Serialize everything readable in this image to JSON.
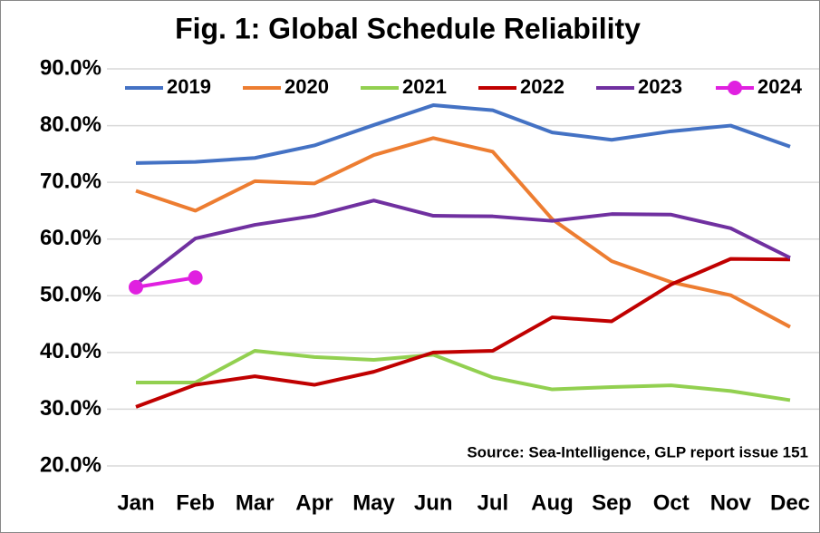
{
  "chart_data": {
    "type": "line",
    "title": "Fig. 1: Global Schedule Reliability",
    "annotation": "Source: Sea-Intelligence, GLP report issue 151",
    "categories": [
      "Jan",
      "Feb",
      "Mar",
      "Apr",
      "May",
      "Jun",
      "Jul",
      "Aug",
      "Sep",
      "Oct",
      "Nov",
      "Dec"
    ],
    "series": [
      {
        "name": "2019",
        "color": "#4472c4",
        "values": [
          73.4,
          73.6,
          74.3,
          76.5,
          80.1,
          83.6,
          82.7,
          78.8,
          77.5,
          79.0,
          80.0,
          76.3
        ]
      },
      {
        "name": "2020",
        "color": "#ed7d31",
        "values": [
          68.5,
          65.0,
          70.2,
          69.8,
          74.8,
          77.8,
          75.4,
          63.5,
          56.1,
          52.4,
          50.1,
          44.5
        ]
      },
      {
        "name": "2021",
        "color": "#92d050",
        "values": [
          34.7,
          34.7,
          40.3,
          39.2,
          38.7,
          39.6,
          35.6,
          33.5,
          33.9,
          34.2,
          33.2,
          31.6
        ]
      },
      {
        "name": "2022",
        "color": "#c00000",
        "values": [
          30.4,
          34.3,
          35.8,
          34.3,
          36.6,
          40.0,
          40.3,
          46.2,
          45.5,
          52.0,
          56.5,
          56.4
        ]
      },
      {
        "name": "2023",
        "color": "#7030a0",
        "values": [
          52.0,
          60.1,
          62.5,
          64.1,
          66.8,
          64.1,
          64.0,
          63.2,
          64.4,
          64.3,
          61.9,
          56.7
        ]
      },
      {
        "name": "2024",
        "color": "#e020e0",
        "marker": true,
        "values": [
          51.5,
          53.2,
          null,
          null,
          null,
          null,
          null,
          null,
          null,
          null,
          null,
          null
        ]
      }
    ],
    "ylim": [
      20,
      90
    ],
    "yticks": [
      {
        "value": 20,
        "label": "20.0%"
      },
      {
        "value": 30,
        "label": "30.0%"
      },
      {
        "value": 40,
        "label": "40.0%"
      },
      {
        "value": 50,
        "label": "50.0%"
      },
      {
        "value": 60,
        "label": "60.0%"
      },
      {
        "value": 70,
        "label": "70.0%"
      },
      {
        "value": 80,
        "label": "80.0%"
      },
      {
        "value": 90,
        "label": "90.0%"
      }
    ],
    "grid": true
  }
}
